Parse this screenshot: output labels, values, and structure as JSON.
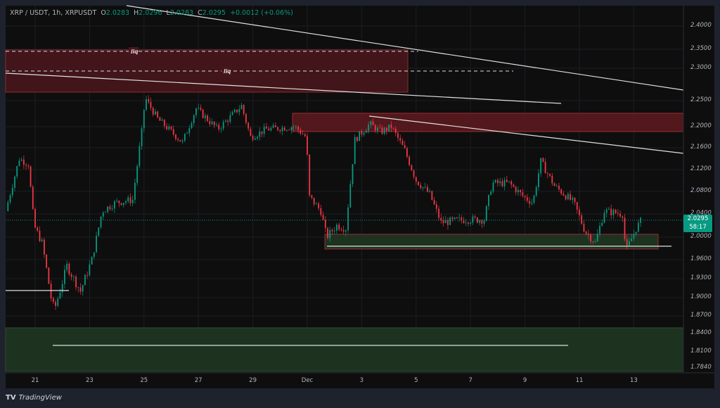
{
  "header": {
    "symbol": "XRP / USDT, 1h, XRPUSDT",
    "open_label": "O",
    "open": "2.0283",
    "high_label": "H",
    "high": "2.0296",
    "low_label": "L",
    "low": "2.0283",
    "close_label": "C",
    "close": "2.0295",
    "change": "+0.0012 (+0.06%)"
  },
  "price_box": {
    "price": "2.0295",
    "countdown": "58:17"
  },
  "annotations": {
    "liq_1": "liq",
    "liq_2": "liq"
  },
  "branding": {
    "logo_text": "TradingView"
  },
  "colors": {
    "up": "#089981",
    "down": "#f23645",
    "background": "#0e0e0e",
    "supply_zone": "#5a1a1e",
    "demand_zone": "#1d3320"
  },
  "chart_data": {
    "type": "candlestick",
    "title": "XRP / USDT, 1h, XRPUSDT",
    "y_ticks": [
      "2.4000",
      "2.3500",
      "2.3000",
      "2.2500",
      "2.2000",
      "2.1600",
      "2.1200",
      "2.0800",
      "2.0400",
      "2.0000",
      "1.9600",
      "1.9300",
      "1.9000",
      "1.8700",
      "1.8400",
      "1.8100",
      "1.7840"
    ],
    "x_ticks": [
      "21",
      "23",
      "25",
      "27",
      "29",
      "Dec",
      "3",
      "5",
      "7",
      "9",
      "11",
      "13"
    ],
    "ylim": [
      1.784,
      2.42
    ],
    "grid": true,
    "price_path": [
      [
        "Nov 19 22:00",
        2.045
      ],
      [
        "Nov 20 10:00",
        2.14
      ],
      [
        "Nov 20 18:00",
        2.13
      ],
      [
        "Nov 20 23:00",
        2.02
      ],
      [
        "Nov 21 06:00",
        1.99
      ],
      [
        "Nov 21 14:00",
        1.9
      ],
      [
        "Nov 21 17:00",
        1.88
      ],
      [
        "Nov 22 04:00",
        1.95
      ],
      [
        "Nov 22 16:00",
        1.91
      ],
      [
        "Nov 23 02:00",
        1.96
      ],
      [
        "Nov 23 11:00",
        2.045
      ],
      [
        "Nov 23 23:00",
        2.06
      ],
      [
        "Nov 24 14:00",
        2.065
      ],
      [
        "Nov 24 22:00",
        2.19
      ],
      [
        "Nov 25 01:00",
        2.255
      ],
      [
        "Nov 25 12:00",
        2.215
      ],
      [
        "Nov 26 10:00",
        2.17
      ],
      [
        "Nov 26 22:00",
        2.235
      ],
      [
        "Nov 27 17:00",
        2.195
      ],
      [
        "Nov 28 14:00",
        2.24
      ],
      [
        "Nov 28 22:00",
        2.18
      ],
      [
        "Nov 29 12:00",
        2.195
      ],
      [
        "Nov 30 13:00",
        2.2
      ],
      [
        "Nov 30 23:00",
        2.18
      ],
      [
        "Dec 1 02:00",
        2.07
      ],
      [
        "Dec 1 12:00",
        2.045
      ],
      [
        "Dec 1 17:00",
        2.0
      ],
      [
        "Dec 2 02:00",
        2.02
      ],
      [
        "Dec 2 10:00",
        2.015
      ],
      [
        "Dec 2 18:00",
        2.175
      ],
      [
        "Dec 3 07:00",
        2.205
      ],
      [
        "Dec 3 17:00",
        2.19
      ],
      [
        "Dec 4 02:00",
        2.2
      ],
      [
        "Dec 4 14:00",
        2.155
      ],
      [
        "Dec 5 00:00",
        2.1
      ],
      [
        "Dec 5 12:00",
        2.075
      ],
      [
        "Dec 5 22:00",
        2.025
      ],
      [
        "Dec 6 19:00",
        2.03
      ],
      [
        "Dec 7 12:00",
        2.03
      ],
      [
        "Dec 7 19:00",
        2.095
      ],
      [
        "Dec 8 10:00",
        2.095
      ],
      [
        "Dec 8 23:00",
        2.07
      ],
      [
        "Dec 9 07:00",
        2.06
      ],
      [
        "Dec 9 14:00",
        2.135
      ],
      [
        "Dec 10 02:00",
        2.09
      ],
      [
        "Dec 10 19:00",
        2.06
      ],
      [
        "Dec 11 05:00",
        2.01
      ],
      [
        "Dec 11 14:00",
        1.99
      ],
      [
        "Dec 11 22:00",
        2.045
      ],
      [
        "Dec 12 14:00",
        2.04
      ],
      [
        "Dec 12 17:00",
        1.975
      ],
      [
        "Dec 13 02:00",
        2.015
      ],
      [
        "Dec 13 07:00",
        2.0295
      ]
    ],
    "current_price": 2.0295
  }
}
